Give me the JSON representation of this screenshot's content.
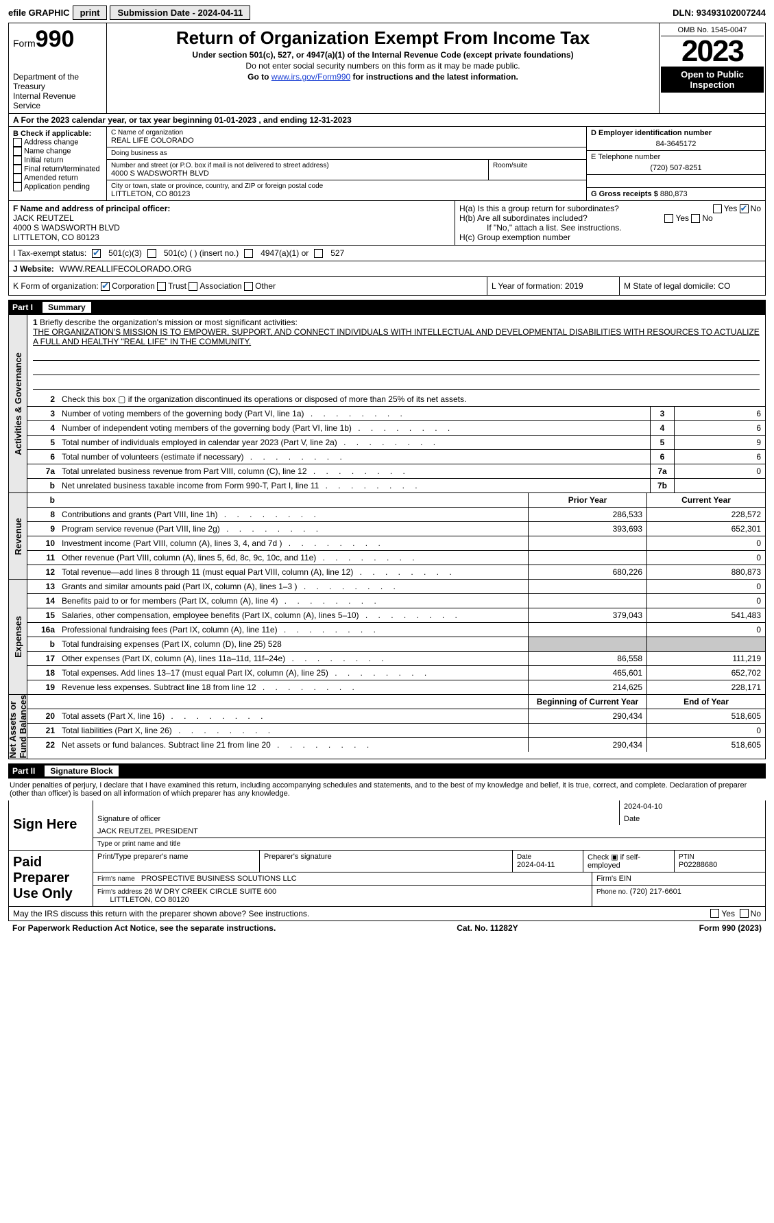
{
  "topbar": {
    "efile": "efile GRAPHIC",
    "print": "print",
    "sub_label": "Submission Date - 2024-04-11",
    "dln": "DLN: 93493102007244"
  },
  "header": {
    "form_word": "Form",
    "form_num": "990",
    "title": "Return of Organization Exempt From Income Tax",
    "subtitle": "Under section 501(c), 527, or 4947(a)(1) of the Internal Revenue Code (except private foundations)",
    "note1": "Do not enter social security numbers on this form as it may be made public.",
    "note2_pre": "Go to ",
    "note2_link": "www.irs.gov/Form990",
    "note2_post": " for instructions and the latest information.",
    "dept": "Department of the Treasury\nInternal Revenue Service",
    "omb": "OMB No. 1545-0047",
    "year": "2023",
    "open": "Open to Public\nInspection"
  },
  "rowA": {
    "text": "A For the 2023 calendar year, or tax year beginning 01-01-2023     , and ending 12-31-2023"
  },
  "boxB": {
    "label": "B Check if applicable:",
    "items": [
      "Address change",
      "Name change",
      "Initial return",
      "Final return/terminated",
      "Amended return",
      "Application pending"
    ]
  },
  "boxC": {
    "name_label": "C Name of organization",
    "name": "REAL LIFE COLORADO",
    "dba_label": "Doing business as",
    "dba": "",
    "street_label": "Number and street (or P.O. box if mail is not delivered to street address)",
    "room_label": "Room/suite",
    "street": "4000 S WADSWORTH BLVD",
    "city_label": "City or town, state or province, country, and ZIP or foreign postal code",
    "city": "LITTLETON, CO  80123"
  },
  "boxD": {
    "label": "D Employer identification number",
    "val": "84-3645172"
  },
  "boxE": {
    "label": "E Telephone number",
    "val": "(720) 507-8251"
  },
  "boxG": {
    "label": "G Gross receipts $",
    "val": "880,873"
  },
  "boxF": {
    "label": "F  Name and address of principal officer:",
    "name": "JACK REUTZEL",
    "addr1": "4000 S WADSWORTH BLVD",
    "addr2": "LITTLETON, CO  80123"
  },
  "boxH": {
    "a": "H(a)  Is this a group return for subordinates?",
    "yes": "Yes",
    "no": "No",
    "b": "H(b)  Are all subordinates included?",
    "b_note": "If \"No,\" attach a list. See instructions.",
    "c": "H(c)  Group exemption number"
  },
  "rowI": {
    "label": "I      Tax-exempt status:",
    "c3": "501(c)(3)",
    "cins": "501(c) (  ) (insert no.)",
    "c4947": "4947(a)(1) or",
    "c527": "527"
  },
  "rowJ": {
    "label": "J      Website:",
    "val": "WWW.REALLIFECOLORADO.ORG"
  },
  "rowK": {
    "label": "K Form of organization:",
    "corp": "Corporation",
    "trust": "Trust",
    "assoc": "Association",
    "other": "Other"
  },
  "rowL": {
    "label": "L Year of formation: 2019"
  },
  "rowM": {
    "label": "M State of legal domicile: CO"
  },
  "part1": {
    "num": "Part I",
    "title": "Summary"
  },
  "mission": {
    "label": "Briefly describe the organization's mission or most significant activities:",
    "text": "THE ORGANIZATION'S MISSION IS TO EMPOWER, SUPPORT, AND CONNECT INDIVIDUALS WITH INTELLECTUAL AND DEVELOPMENTAL DISABILITIES WITH RESOURCES TO ACTUALIZE A FULL AND HEALTHY \"REAL LIFE\" IN THE COMMUNITY."
  },
  "gov_lines": [
    {
      "n": "2",
      "d": "Check this box ▢ if the organization discontinued its operations or disposed of more than 25% of its net assets."
    },
    {
      "n": "3",
      "d": "Number of voting members of the governing body (Part VI, line 1a)",
      "box": "3",
      "v": "6"
    },
    {
      "n": "4",
      "d": "Number of independent voting members of the governing body (Part VI, line 1b)",
      "box": "4",
      "v": "6"
    },
    {
      "n": "5",
      "d": "Total number of individuals employed in calendar year 2023 (Part V, line 2a)",
      "box": "5",
      "v": "9"
    },
    {
      "n": "6",
      "d": "Total number of volunteers (estimate if necessary)",
      "box": "6",
      "v": "6"
    },
    {
      "n": "7a",
      "d": "Total unrelated business revenue from Part VIII, column (C), line 12",
      "box": "7a",
      "v": "0"
    },
    {
      "n": "b",
      "d": "Net unrelated business taxable income from Form 990-T, Part I, line 11",
      "box": "7b",
      "v": ""
    }
  ],
  "two_col_head": {
    "prior": "Prior Year",
    "current": "Current Year"
  },
  "revenue": [
    {
      "n": "8",
      "d": "Contributions and grants (Part VIII, line 1h)",
      "p": "286,533",
      "c": "228,572"
    },
    {
      "n": "9",
      "d": "Program service revenue (Part VIII, line 2g)",
      "p": "393,693",
      "c": "652,301"
    },
    {
      "n": "10",
      "d": "Investment income (Part VIII, column (A), lines 3, 4, and 7d )",
      "p": "",
      "c": "0"
    },
    {
      "n": "11",
      "d": "Other revenue (Part VIII, column (A), lines 5, 6d, 8c, 9c, 10c, and 11e)",
      "p": "",
      "c": "0"
    },
    {
      "n": "12",
      "d": "Total revenue—add lines 8 through 11 (must equal Part VIII, column (A), line 12)",
      "p": "680,226",
      "c": "880,873"
    }
  ],
  "expenses": [
    {
      "n": "13",
      "d": "Grants and similar amounts paid (Part IX, column (A), lines 1–3 )",
      "p": "",
      "c": "0"
    },
    {
      "n": "14",
      "d": "Benefits paid to or for members (Part IX, column (A), line 4)",
      "p": "",
      "c": "0"
    },
    {
      "n": "15",
      "d": "Salaries, other compensation, employee benefits (Part IX, column (A), lines 5–10)",
      "p": "379,043",
      "c": "541,483"
    },
    {
      "n": "16a",
      "d": "Professional fundraising fees (Part IX, column (A), line 11e)",
      "p": "",
      "c": "0"
    },
    {
      "n": "b",
      "d": "Total fundraising expenses (Part IX, column (D), line 25) 528",
      "shade": true
    },
    {
      "n": "17",
      "d": "Other expenses (Part IX, column (A), lines 11a–11d, 11f–24e)",
      "p": "86,558",
      "c": "111,219"
    },
    {
      "n": "18",
      "d": "Total expenses. Add lines 13–17 (must equal Part IX, column (A), line 25)",
      "p": "465,601",
      "c": "652,702"
    },
    {
      "n": "19",
      "d": "Revenue less expenses. Subtract line 18 from line 12",
      "p": "214,625",
      "c": "228,171"
    }
  ],
  "net_head": {
    "prior": "Beginning of Current Year",
    "current": "End of Year"
  },
  "net": [
    {
      "n": "20",
      "d": "Total assets (Part X, line 16)",
      "p": "290,434",
      "c": "518,605"
    },
    {
      "n": "21",
      "d": "Total liabilities (Part X, line 26)",
      "p": "",
      "c": "0"
    },
    {
      "n": "22",
      "d": "Net assets or fund balances. Subtract line 21 from line 20",
      "p": "290,434",
      "c": "518,605"
    }
  ],
  "sides": {
    "gov": "Activities & Governance",
    "rev": "Revenue",
    "exp": "Expenses",
    "net": "Net Assets or\nFund Balances"
  },
  "part2": {
    "num": "Part II",
    "title": "Signature Block"
  },
  "perjury": "Under penalties of perjury, I declare that I have examined this return, including accompanying schedules and statements, and to the best of my knowledge and belief, it is true, correct, and complete. Declaration of preparer (other than officer) is based on all information of which preparer has any knowledge.",
  "sign": {
    "label": "Sign Here",
    "date": "2024-04-10",
    "sig_label": "Signature of officer",
    "date_label": "Date",
    "officer": "JACK REUTZEL PRESIDENT",
    "type_label": "Type or print name and title"
  },
  "paid": {
    "label": "Paid Preparer Use Only",
    "cols": {
      "name": "Print/Type preparer's name",
      "sig": "Preparer's signature",
      "date": "Date",
      "date_v": "2024-04-11",
      "check": "Check ▣ if self-employed",
      "ptin_l": "PTIN",
      "ptin": "P02288680"
    },
    "firm_l": "Firm's name",
    "firm": "PROSPECTIVE BUSINESS SOLUTIONS LLC",
    "ein_l": "Firm's EIN",
    "addr_l": "Firm's address",
    "addr": "26 W DRY CREEK CIRCLE SUITE 600",
    "addr2": "LITTLETON, CO  80120",
    "phone_l": "Phone no.",
    "phone": "(720) 217-6601"
  },
  "discuss": {
    "q": "May the IRS discuss this return with the preparer shown above? See instructions.",
    "yes": "Yes",
    "no": "No"
  },
  "footer": {
    "left": "For Paperwork Reduction Act Notice, see the separate instructions.",
    "mid": "Cat. No. 11282Y",
    "right": "Form 990 (2023)"
  }
}
